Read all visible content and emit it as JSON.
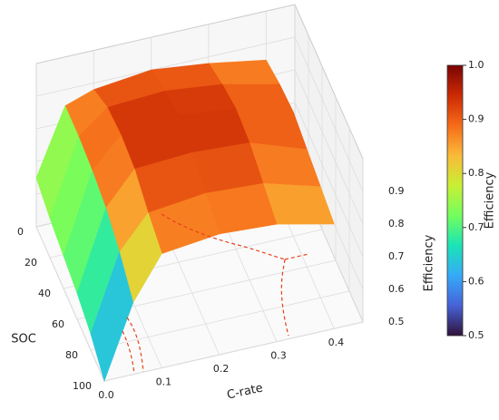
{
  "chart_data": {
    "type": "surface",
    "x_label": "C-rate",
    "y_label": "SOC",
    "z_label": "Efficiency",
    "colorbar_label": "Efficiency",
    "x": [
      0,
      0.05,
      0.1,
      0.2,
      0.3,
      0.4
    ],
    "y": [
      0,
      20,
      40,
      60,
      80,
      100
    ],
    "z": [
      [
        0.65,
        0.85,
        0.88,
        0.9,
        0.88,
        0.85
      ],
      [
        0.62,
        0.85,
        0.92,
        0.93,
        0.91,
        0.87
      ],
      [
        0.6,
        0.84,
        0.93,
        0.95,
        0.93,
        0.88
      ],
      [
        0.58,
        0.82,
        0.92,
        0.93,
        0.92,
        0.86
      ],
      [
        0.55,
        0.78,
        0.88,
        0.9,
        0.89,
        0.84
      ],
      [
        0.5,
        0.72,
        0.85,
        0.87,
        0.86,
        0.82
      ]
    ],
    "xlim": [
      0,
      0.45
    ],
    "xticks": [
      {
        "value": 0,
        "label": "0.0"
      },
      0.1,
      0.2,
      0.3,
      0.4
    ],
    "ylim": [
      0,
      100
    ],
    "yticks": [
      0,
      20,
      40,
      60,
      80,
      100
    ],
    "zlim": [
      0.5,
      1.0
    ],
    "zticks": [
      0.5,
      0.6,
      0.7,
      0.8,
      0.9
    ],
    "clim": [
      0.5,
      1.0
    ],
    "cticks": [
      0.5,
      0.6,
      0.7,
      0.8,
      0.9,
      {
        "value": 1,
        "label": "1.0"
      }
    ],
    "colormap": [
      "#30123b",
      "#4662d7",
      "#36aaf9",
      "#1ae4b6",
      "#72fe5e",
      "#c8ef34",
      "#faba39",
      "#f66b19",
      "#cb2a04",
      "#7a0403"
    ],
    "grid": true
  }
}
